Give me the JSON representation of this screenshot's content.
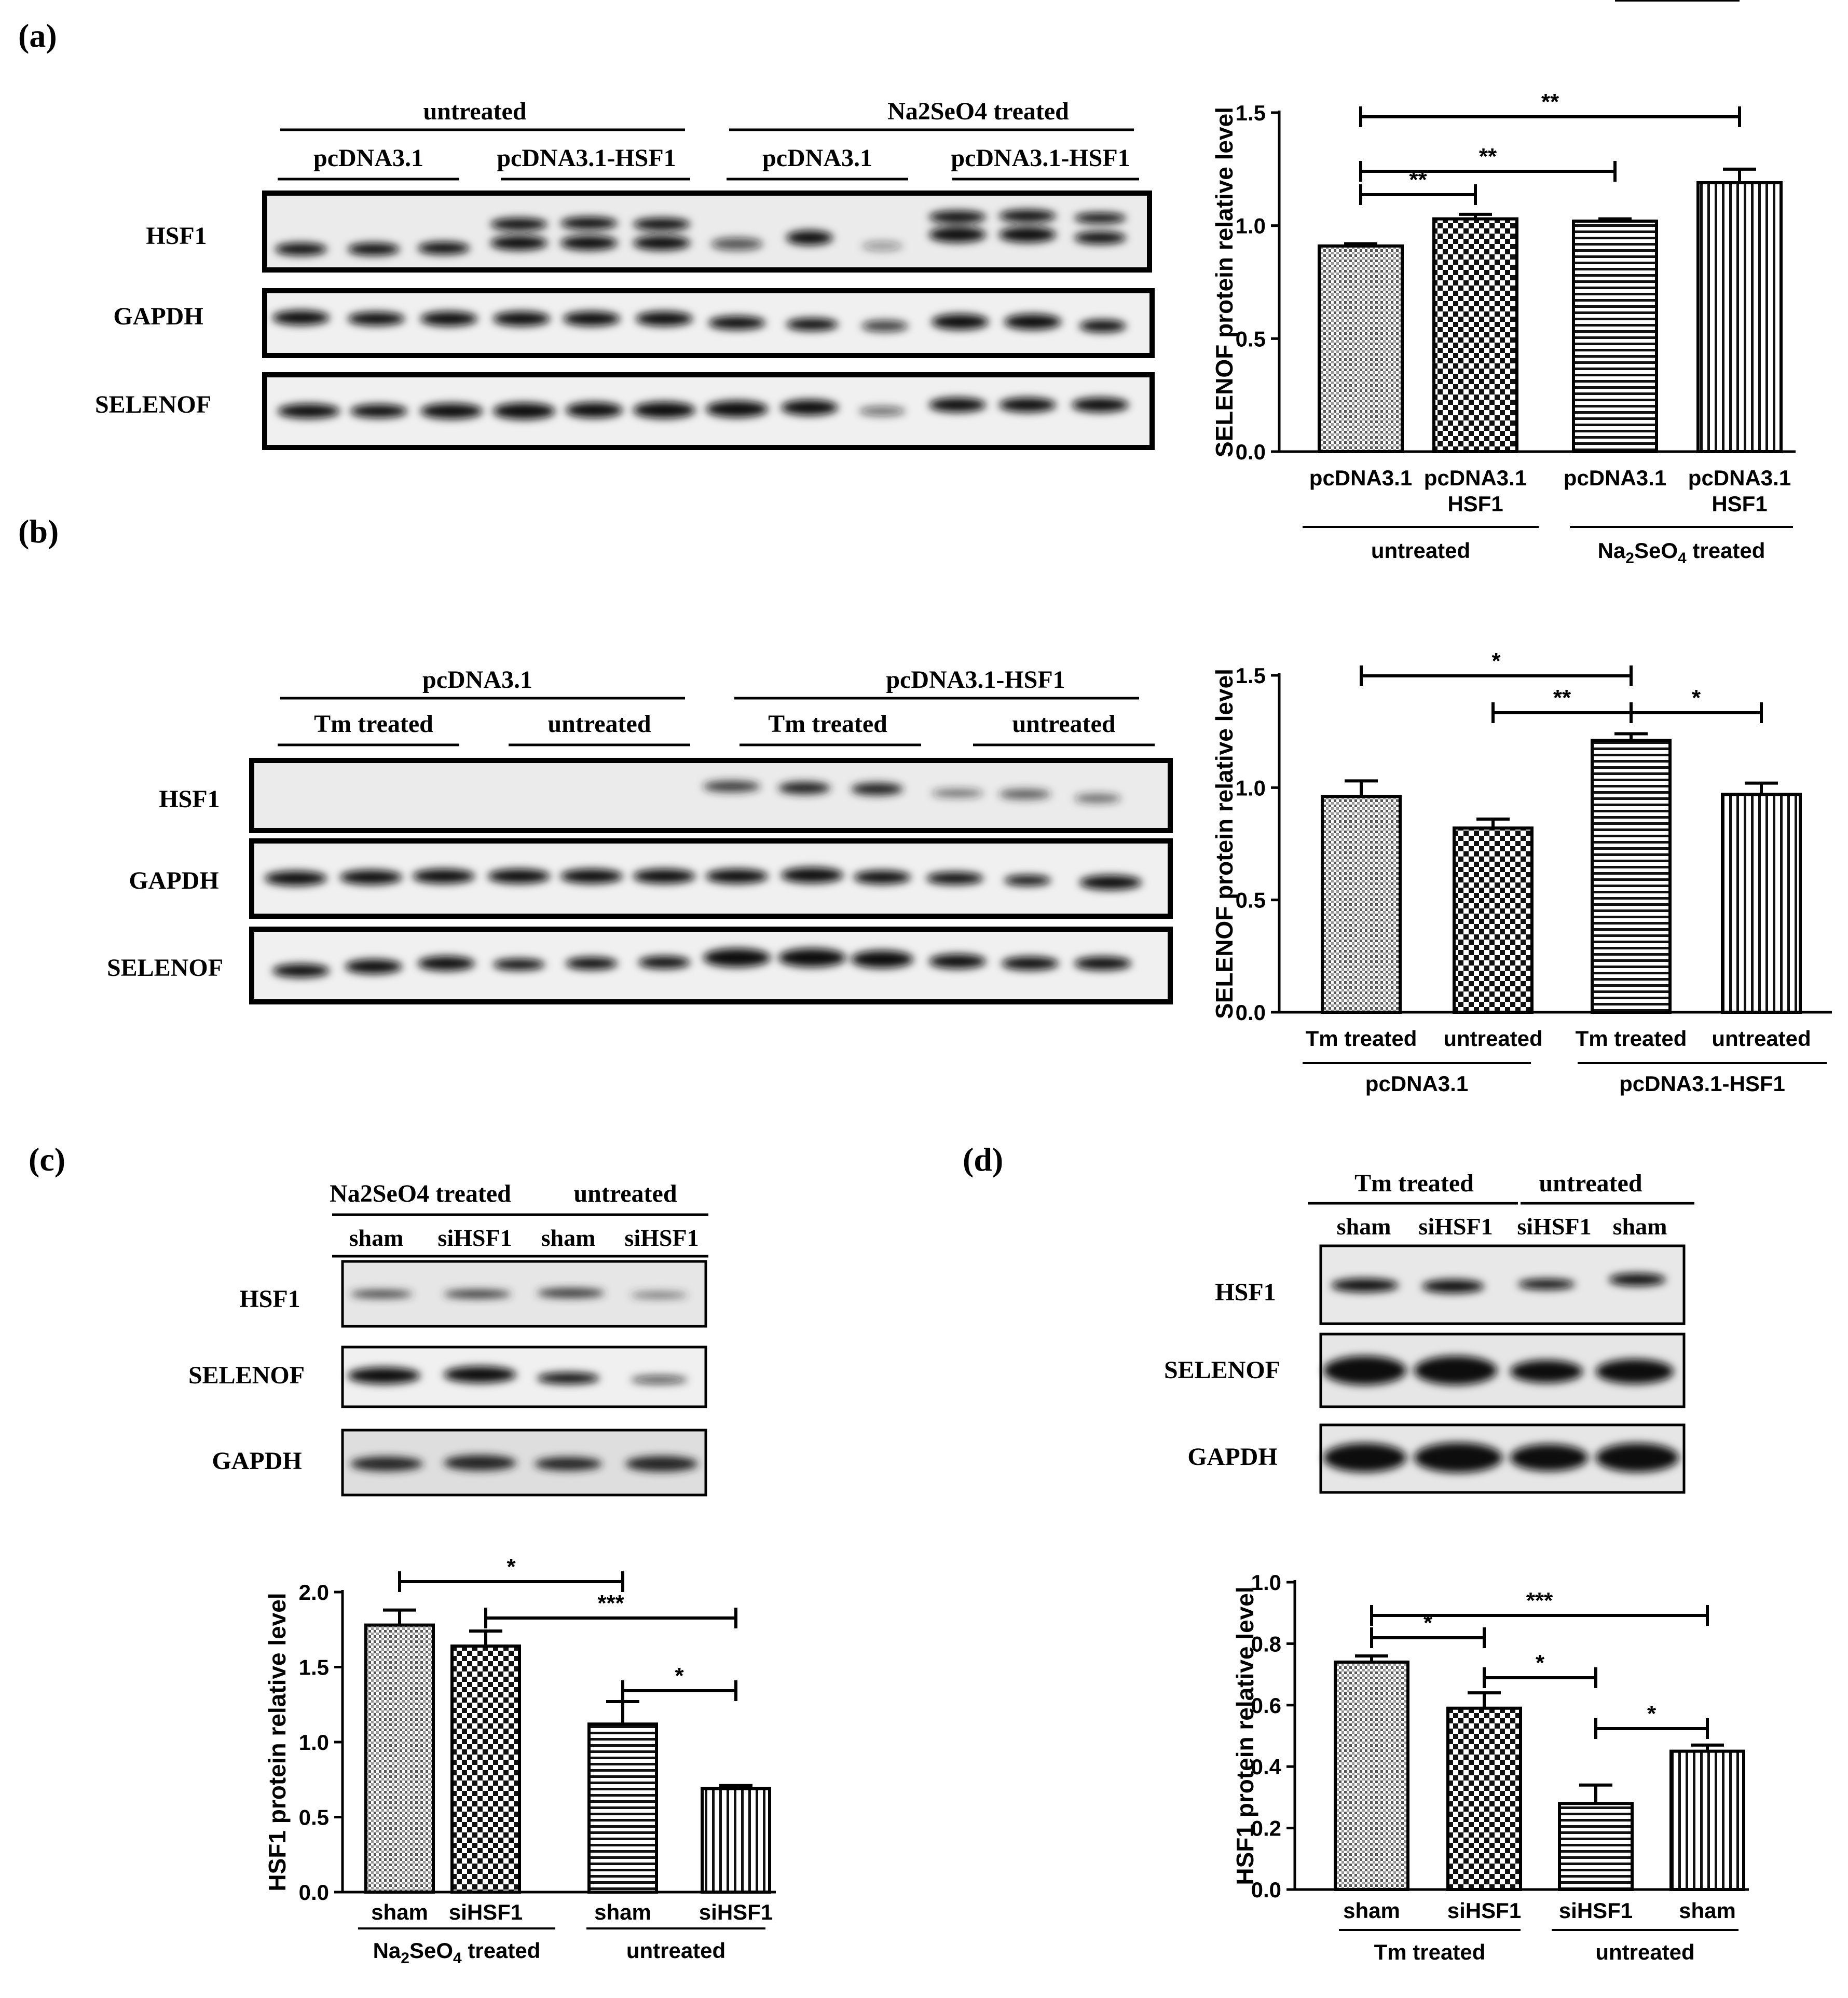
{
  "panels": {
    "a": {
      "label": "(a)",
      "blot": {
        "groups": [
          "untreated",
          "Na2SeO4 treated"
        ],
        "subgroups": [
          "pcDNA3.1",
          "pcDNA3.1-HSF1",
          "pcDNA3.1",
          "pcDNA3.1-HSF1"
        ],
        "rows": [
          "HSF1",
          "GAPDH",
          "SELENOF"
        ]
      },
      "chart_data": {
        "type": "bar",
        "ylabel": "SELENOF protein relative level",
        "categories": [
          "pcDNA3.1",
          "pcDNA3.1 HSF1",
          "pcDNA3.1",
          "pcDNA3.1 HSF1"
        ],
        "values": [
          0.91,
          1.03,
          1.02,
          1.19
        ],
        "errors": [
          0.01,
          0.02,
          0.01,
          0.06
        ],
        "ylim": [
          0,
          1.5
        ],
        "yticks": [
          "0.0",
          "0.5",
          "1.0",
          "1.5"
        ],
        "groups": [
          "untreated",
          "Na2SeO4 treated"
        ],
        "significance": [
          {
            "from": 0,
            "to": 3,
            "label": "**"
          },
          {
            "from": 0,
            "to": 2,
            "label": "**"
          },
          {
            "from": 0,
            "to": 1,
            "label": "**"
          },
          {
            "from": 2,
            "to": 3,
            "label": "*"
          }
        ]
      }
    },
    "b": {
      "label": "(b)",
      "blot": {
        "groups": [
          "pcDNA3.1",
          "pcDNA3.1-HSF1"
        ],
        "subgroups": [
          "Tm treated",
          "untreated",
          "Tm treated",
          "untreated"
        ],
        "rows": [
          "HSF1",
          "GAPDH",
          "SELENOF"
        ]
      },
      "chart_data": {
        "type": "bar",
        "ylabel": "SELENOF protein relative level",
        "categories": [
          "Tm treated",
          "untreated",
          "Tm treated",
          "untreated"
        ],
        "values": [
          0.96,
          0.82,
          1.21,
          0.97
        ],
        "errors": [
          0.07,
          0.04,
          0.03,
          0.05
        ],
        "ylim": [
          0,
          1.5
        ],
        "yticks": [
          "0.0",
          "0.5",
          "1.0",
          "1.5"
        ],
        "groups": [
          "pcDNA3.1",
          "pcDNA3.1-HSF1"
        ],
        "significance": [
          {
            "from": 0,
            "to": 2,
            "label": "*"
          },
          {
            "from": 1,
            "to": 2,
            "label": "**"
          },
          {
            "from": 2,
            "to": 3,
            "label": "*"
          }
        ]
      }
    },
    "c": {
      "label": "(c)",
      "blot": {
        "groups": [
          "Na2SeO4 treated",
          "untreated"
        ],
        "subgroups": [
          "sham",
          "siHSF1",
          "sham",
          "siHSF1"
        ],
        "rows": [
          "HSF1",
          "SELENOF",
          "GAPDH"
        ]
      },
      "chart_data": {
        "type": "bar",
        "ylabel": "HSF1 protein relative level",
        "categories": [
          "sham",
          "siHSF1",
          "sham",
          "siHSF1"
        ],
        "values": [
          1.78,
          1.64,
          1.12,
          0.69
        ],
        "errors": [
          0.1,
          0.1,
          0.15,
          0.02
        ],
        "ylim": [
          0,
          2.0
        ],
        "yticks": [
          "0.0",
          "0.5",
          "1.0",
          "1.5",
          "2.0"
        ],
        "groups": [
          "Na2SeO4 treated",
          "untreated"
        ],
        "significance": [
          {
            "from": 0,
            "to": 2,
            "label": "*"
          },
          {
            "from": 1,
            "to": 3,
            "label": "***"
          },
          {
            "from": 2,
            "to": 3,
            "label": "*"
          }
        ]
      }
    },
    "d": {
      "label": "(d)",
      "blot": {
        "groups": [
          "Tm treated",
          "untreated"
        ],
        "subgroups": [
          "sham",
          "siHSF1",
          "siHSF1",
          "sham"
        ],
        "rows": [
          "HSF1",
          "SELENOF",
          "GAPDH"
        ]
      },
      "chart_data": {
        "type": "bar",
        "ylabel": "HSF1 protein relative level",
        "categories": [
          "sham",
          "siHSF1",
          "siHSF1",
          "sham"
        ],
        "values": [
          0.74,
          0.59,
          0.28,
          0.45
        ],
        "errors": [
          0.02,
          0.05,
          0.06,
          0.02
        ],
        "ylim": [
          0,
          1.0
        ],
        "yticks": [
          "0.0",
          "0.2",
          "0.4",
          "0.6",
          "0.8",
          "1.0"
        ],
        "groups": [
          "Tm treated",
          "untreated"
        ],
        "significance": [
          {
            "from": 0,
            "to": 3,
            "label": "***"
          },
          {
            "from": 0,
            "to": 1,
            "label": "*"
          },
          {
            "from": 1,
            "to": 2,
            "label": "*"
          },
          {
            "from": 2,
            "to": 3,
            "label": "*"
          }
        ]
      }
    }
  }
}
